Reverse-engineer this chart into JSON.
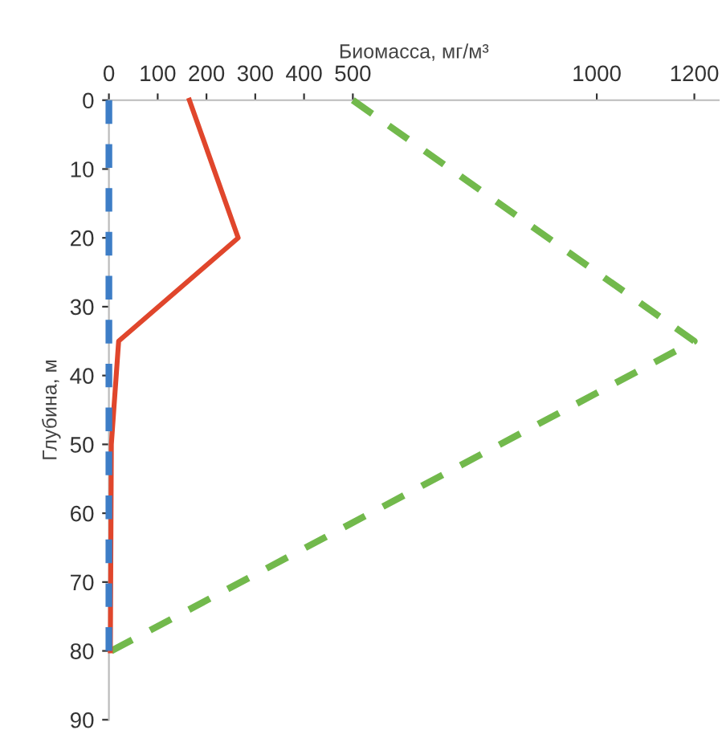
{
  "chart_data": {
    "type": "line",
    "xlabel": "Биомасса, мг/м³",
    "ylabel": "Глубина, м",
    "xlim": [
      0,
      1250
    ],
    "xticks": [
      0,
      100,
      200,
      300,
      400,
      500,
      1000,
      1200
    ],
    "ylim": [
      90,
      0
    ],
    "yticks": [
      0,
      10,
      20,
      30,
      40,
      50,
      60,
      70,
      80,
      90
    ],
    "grid": false,
    "legend": false,
    "marker": "none",
    "series": [
      {
        "color": "#3d7dc6",
        "line_style": "dashed",
        "x": [
          0,
          0,
          0,
          0,
          0
        ],
        "values": [
          0,
          20,
          35,
          50,
          80
        ]
      },
      {
        "color": "#e0462c",
        "line_style": "solid",
        "x": [
          165,
          265,
          20,
          5,
          3
        ],
        "values": [
          0,
          20,
          35,
          50,
          80
        ]
      },
      {
        "color": "#72b94c",
        "line_style": "dashed",
        "x": [
          500,
          1200,
          5
        ],
        "values": [
          0,
          35,
          80
        ]
      }
    ]
  }
}
